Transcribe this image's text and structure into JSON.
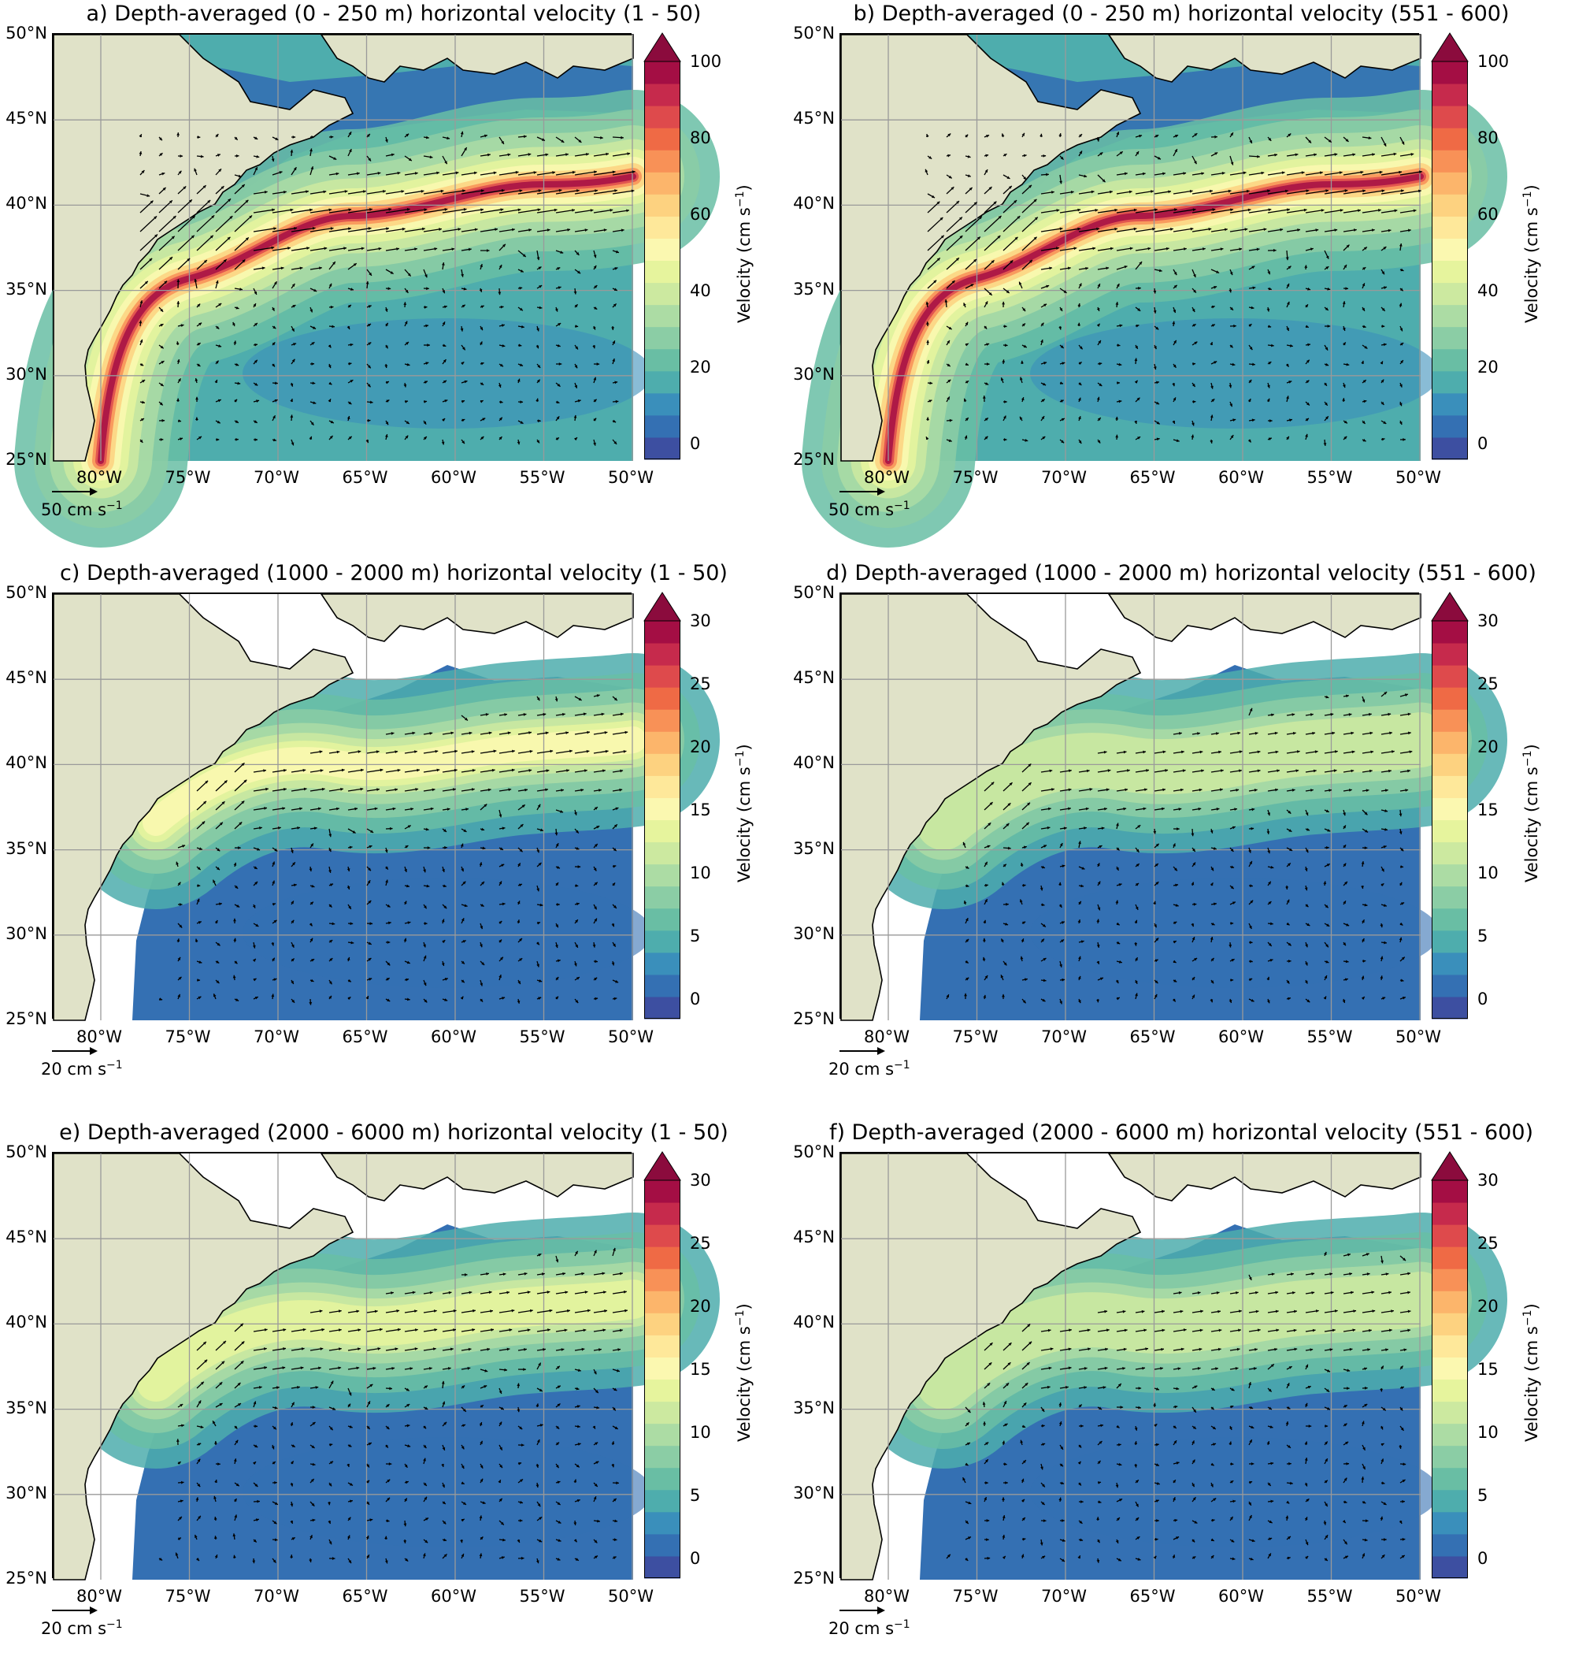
{
  "lat_labels": [
    "50°N",
    "45°N",
    "40°N",
    "35°N",
    "30°N",
    "25°N"
  ],
  "lon_labels": [
    "80°W",
    "75°W",
    "70°W",
    "65°W",
    "60°W",
    "55°W",
    "50°W"
  ],
  "colorbar_label_main": "Velocity (cm s",
  "colorbar_label_sup": "−1",
  "colors": {
    "land": "#e0e2c8",
    "shelf_white": "#ffffff",
    "grid": "#9a9a9a",
    "cmap": [
      "#3d4fa1",
      "#3470b3",
      "#3a8fbb",
      "#4eadad",
      "#69bea4",
      "#8bcda5",
      "#acdca4",
      "#cce9a0",
      "#e6f49d",
      "#fbf8b0",
      "#fee89a",
      "#fdd280",
      "#fcb56b",
      "#f89157",
      "#ef6a45",
      "#de4a4c",
      "#c62a4c",
      "#a40e44",
      "#8b0b3d"
    ]
  },
  "panels": [
    {
      "id": "a",
      "title": "a) Depth-averaged (0 - 250 m) horizontal velocity (1 - 50)",
      "cbar_ticks": [
        "100",
        "80",
        "60",
        "40",
        "20",
        "0"
      ],
      "ref_label": "50 cm s",
      "ref_sup": "−1",
      "intensity": 1.0,
      "deep": false
    },
    {
      "id": "b",
      "title": "b) Depth-averaged (0 - 250 m) horizontal velocity (551 - 600)",
      "cbar_ticks": [
        "100",
        "80",
        "60",
        "40",
        "20",
        "0"
      ],
      "ref_label": "50 cm s",
      "ref_sup": "−1",
      "intensity": 0.92,
      "deep": false
    },
    {
      "id": "c",
      "title": "c) Depth-averaged (1000 - 2000 m) horizontal velocity (1 - 50)",
      "cbar_ticks": [
        "30",
        "25",
        "20",
        "15",
        "10",
        "5",
        "0"
      ],
      "ref_label": "20 cm s",
      "ref_sup": "−1",
      "intensity": 0.55,
      "deep": true
    },
    {
      "id": "d",
      "title": "d) Depth-averaged (1000 - 2000 m) horizontal velocity (551 - 600)",
      "cbar_ticks": [
        "30",
        "25",
        "20",
        "15",
        "10",
        "5",
        "0"
      ],
      "ref_label": "20 cm s",
      "ref_sup": "−1",
      "intensity": 0.4,
      "deep": true
    },
    {
      "id": "e",
      "title": "e) Depth-averaged (2000 - 6000 m) horizontal velocity (1 - 50)",
      "cbar_ticks": [
        "30",
        "25",
        "20",
        "15",
        "10",
        "5",
        "0"
      ],
      "ref_label": "20 cm s",
      "ref_sup": "−1",
      "intensity": 0.5,
      "deep": true
    },
    {
      "id": "f",
      "title": "f) Depth-averaged (2000 - 6000 m) horizontal velocity (551 - 600)",
      "cbar_ticks": [
        "30",
        "25",
        "20",
        "15",
        "10",
        "5",
        "0"
      ],
      "ref_label": "20 cm s",
      "ref_sup": "−1",
      "intensity": 0.38,
      "deep": true
    }
  ]
}
